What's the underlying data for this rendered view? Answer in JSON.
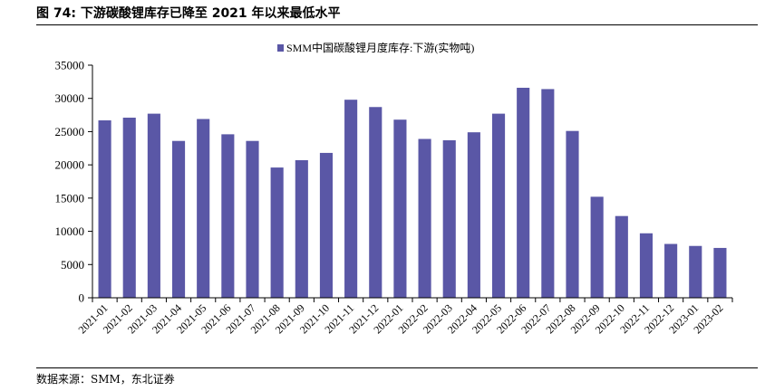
{
  "figure": {
    "title": "图 74: 下游碳酸锂库存已降至 2021 年以来最低水平",
    "source": "数据来源：SMM，东北证券"
  },
  "chart_data": {
    "type": "bar",
    "title": "",
    "xlabel": "",
    "ylabel": "",
    "legend": {
      "label": "SMM中国碳酸锂月度库存:下游(实物吨)",
      "position": "top-center"
    },
    "ylim": [
      0,
      35000
    ],
    "yticks": [
      "0",
      "5000",
      "10000",
      "15000",
      "20000",
      "25000",
      "30000",
      "35000"
    ],
    "bar_color": "#5a57a6",
    "grid": false,
    "categories": [
      "2021-01",
      "2021-02",
      "2021-03",
      "2021-04",
      "2021-05",
      "2021-06",
      "2021-07",
      "2021-08",
      "2021-09",
      "2021-10",
      "2021-11",
      "2021-12",
      "2022-01",
      "2022-02",
      "2022-03",
      "2022-04",
      "2022-05",
      "2022-06",
      "2022-07",
      "2022-08",
      "2022-09",
      "2022-10",
      "2022-11",
      "2022-12",
      "2023-01",
      "2023-02"
    ],
    "series": [
      {
        "name": "SMM中国碳酸锂月度库存:下游(实物吨)",
        "values": [
          26700,
          27100,
          27700,
          23600,
          26900,
          24600,
          23600,
          19600,
          20700,
          21800,
          29800,
          28700,
          26800,
          23900,
          23700,
          24900,
          27700,
          31600,
          31400,
          25100,
          15200,
          12300,
          9700,
          8100,
          7800,
          7500
        ]
      }
    ]
  }
}
